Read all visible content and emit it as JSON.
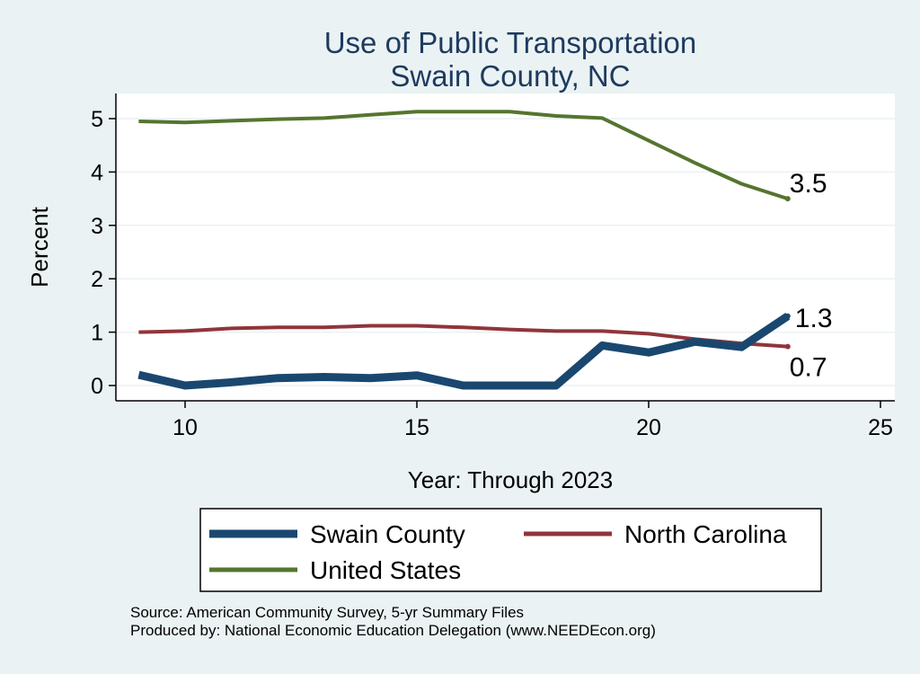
{
  "chart_data": {
    "type": "line",
    "title": "Use of Public Transportation",
    "subtitle": "Swain County, NC",
    "xlabel": "Year: Through 2023",
    "ylabel": "Percent",
    "xlim": [
      9,
      25
    ],
    "ylim": [
      0,
      5.2
    ],
    "x_ticks": [
      10,
      15,
      20,
      25
    ],
    "y_ticks": [
      0,
      1,
      2,
      3,
      4,
      5
    ],
    "grid": true,
    "legend_position": "bottom",
    "x": [
      9,
      10,
      11,
      12,
      13,
      14,
      15,
      16,
      17,
      18,
      19,
      20,
      21,
      22,
      23
    ],
    "series": [
      {
        "name": "Swain County",
        "color": "#1a476f",
        "values": [
          0.2,
          0.0,
          0.06,
          0.14,
          0.16,
          0.14,
          0.19,
          0.0,
          0.0,
          0.0,
          0.75,
          0.62,
          0.82,
          0.72,
          1.3
        ],
        "end_label": "1.3"
      },
      {
        "name": "North Carolina",
        "color": "#90353b",
        "values": [
          1.0,
          1.02,
          1.07,
          1.09,
          1.09,
          1.12,
          1.12,
          1.09,
          1.05,
          1.02,
          1.02,
          0.97,
          0.87,
          0.79,
          0.73
        ],
        "end_label": "0.7"
      },
      {
        "name": "United States",
        "color": "#55752f",
        "values": [
          4.95,
          4.93,
          4.96,
          4.99,
          5.01,
          5.07,
          5.13,
          5.13,
          5.13,
          5.05,
          5.01,
          4.59,
          4.17,
          3.78,
          3.5
        ],
        "end_label": "3.5"
      }
    ]
  },
  "source_line": "Source: American Community Survey, 5-yr Summary Files",
  "produced_line": "Produced by: National Economic Education Delegation (www.NEEDEcon.org)"
}
